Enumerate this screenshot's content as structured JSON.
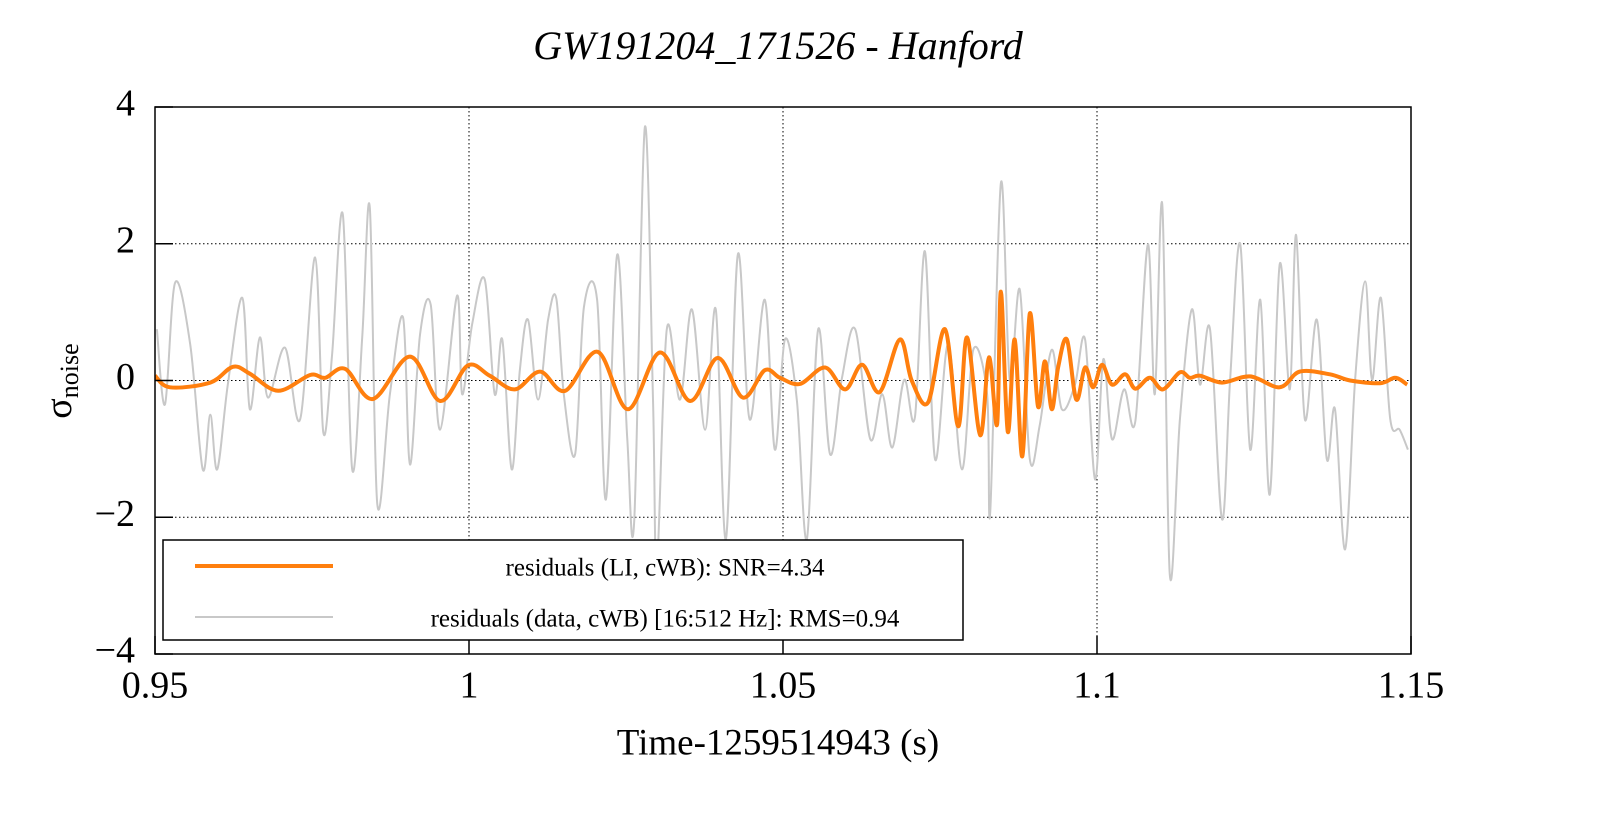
{
  "chart_data": {
    "type": "line",
    "title": "GW191204_171526 - Hanford",
    "xlabel": "Time-1259514943 (s)",
    "ylabel": {
      "symbol": "σ",
      "subscript": "noise"
    },
    "xlim": [
      0.95,
      1.15
    ],
    "xticks": [
      0.95,
      1,
      1.05,
      1.1,
      1.15
    ],
    "ylim": [
      -4,
      4
    ],
    "yticks": [
      {
        "value": -4,
        "label": "−4"
      },
      {
        "value": -2,
        "label": "−2"
      },
      0,
      2,
      4
    ],
    "grid": true,
    "legend": "lower left",
    "series": [
      {
        "name": "residuals (data, cWB) [16:512 Hz]: RMS=0.94",
        "color": "#c8c8c8",
        "x": [
          0.9503,
          0.9516,
          0.9532,
          0.9556,
          0.9576,
          0.9588,
          0.9599,
          0.9616,
          0.9639,
          0.9651,
          0.9667,
          0.968,
          0.9707,
          0.9731,
          0.9755,
          0.9768,
          0.9782,
          0.9799,
          0.9814,
          0.983,
          0.9842,
          0.9854,
          0.9874,
          0.9895,
          0.9906,
          0.9922,
          0.9939,
          0.9954,
          0.9981,
          0.9989,
          1.0005,
          1.0025,
          1.0041,
          1.0053,
          1.0068,
          1.0081,
          1.0094,
          1.011,
          1.0126,
          1.0139,
          1.0151,
          1.0169,
          1.0183,
          1.0204,
          1.0218,
          1.0236,
          1.0252,
          1.0263,
          1.028,
          1.0293,
          1.0299,
          1.0315,
          1.0336,
          1.0355,
          1.0376,
          1.0393,
          1.0409,
          1.0428,
          1.0447,
          1.0471,
          1.0487,
          1.0503,
          1.0522,
          1.0538,
          1.0556,
          1.0575,
          1.0594,
          1.0615,
          1.0639,
          1.0658,
          1.0674,
          1.0693,
          1.071,
          1.0726,
          1.0742,
          1.0763,
          1.0785,
          1.0803,
          1.0825,
          1.083,
          1.0847,
          1.0861,
          1.0877,
          1.0893,
          1.0909,
          1.0928,
          1.0944,
          1.0965,
          1.0981,
          1.0997,
          1.101,
          1.1024,
          1.1043,
          1.1061,
          1.1081,
          1.1092,
          1.1104,
          1.1116,
          1.1132,
          1.1151,
          1.1164,
          1.118,
          1.1199,
          1.1212,
          1.1228,
          1.1244,
          1.126,
          1.1275,
          1.1291,
          1.1307,
          1.1317,
          1.1331,
          1.135,
          1.1366,
          1.1379,
          1.1395,
          1.1411,
          1.1427,
          1.1438,
          1.1452,
          1.1467,
          1.1482,
          1.1495
        ],
        "values": [
          0.75,
          -0.35,
          1.43,
          0.53,
          -1.3,
          -0.5,
          -1.3,
          -0.06,
          1.21,
          -0.42,
          0.63,
          -0.25,
          0.48,
          -0.57,
          1.8,
          -0.76,
          0.38,
          2.43,
          -1.3,
          0.63,
          2.53,
          -1.81,
          -0.2,
          0.92,
          -1.23,
          0.67,
          1.11,
          -0.72,
          1.24,
          -0.2,
          0.82,
          1.48,
          -0.2,
          0.6,
          -1.3,
          0.16,
          0.89,
          -0.28,
          0.89,
          1.2,
          -0.2,
          -1.08,
          1.07,
          1.18,
          -1.74,
          1.84,
          -0.86,
          -2.06,
          3.7,
          -0.28,
          -2.76,
          0.75,
          -0.28,
          1.04,
          -0.72,
          1.04,
          -2.32,
          1.84,
          -0.57,
          1.18,
          -1.01,
          0.6,
          -0.28,
          -2.32,
          0.75,
          -1.08,
          0.04,
          0.75,
          -0.86,
          -0.2,
          -0.98,
          0.01,
          -0.54,
          1.89,
          -1.15,
          0.53,
          -1.3,
          0.45,
          -0.2,
          -1.93,
          2.89,
          0.01,
          1.33,
          -1.15,
          -0.64,
          0.45,
          -0.42,
          -0.06,
          0.6,
          -1.45,
          0.31,
          -0.86,
          -0.13,
          -0.6,
          1.99,
          -0.2,
          2.57,
          -2.84,
          -0.57,
          1.04,
          -0.06,
          0.75,
          -2.03,
          0.01,
          2.0,
          -1.01,
          1.18,
          -1.67,
          1.7,
          -0.13,
          2.13,
          -0.57,
          0.89,
          -1.15,
          -0.42,
          -2.47,
          0.01,
          1.45,
          0.01,
          1.21,
          -0.57,
          -0.72,
          -1.01
        ]
      },
      {
        "name": "residuals (LI, cWB): SNR=4.34",
        "color": "#ff7f0e",
        "x": [
          0.95,
          0.9524,
          0.9588,
          0.9624,
          0.9651,
          0.9696,
          0.9747,
          0.9771,
          0.9803,
          0.9847,
          0.9906,
          0.9954,
          0.9998,
          1.0033,
          1.0073,
          1.0113,
          1.0153,
          1.0205,
          1.0253,
          1.0304,
          1.0352,
          1.0396,
          1.0436,
          1.0471,
          1.0495,
          1.0527,
          1.0567,
          1.0599,
          1.0626,
          1.0654,
          1.0686,
          1.0705,
          1.0731,
          1.0758,
          1.0779,
          1.0793,
          1.0814,
          1.0828,
          1.0841,
          1.0847,
          1.0858,
          1.0869,
          1.0881,
          1.0893,
          1.0906,
          1.0917,
          1.0928,
          1.0938,
          1.0952,
          1.0967,
          1.0981,
          1.0994,
          1.1008,
          1.1024,
          1.1045,
          1.1061,
          1.1084,
          1.1105,
          1.1132,
          1.1148,
          1.1164,
          1.1199,
          1.1244,
          1.1291,
          1.1323,
          1.1371,
          1.1403,
          1.1451,
          1.1475,
          1.1494
        ],
        "values": [
          0.07,
          -0.1,
          -0.03,
          0.2,
          0.1,
          -0.15,
          0.08,
          0.04,
          0.17,
          -0.27,
          0.35,
          -0.3,
          0.22,
          0.07,
          -0.13,
          0.13,
          -0.15,
          0.42,
          -0.42,
          0.41,
          -0.3,
          0.33,
          -0.25,
          0.15,
          0.04,
          -0.05,
          0.19,
          -0.13,
          0.23,
          -0.17,
          0.6,
          0,
          -0.32,
          0.75,
          -0.67,
          0.63,
          -0.8,
          0.34,
          -0.64,
          1.3,
          -0.75,
          0.6,
          -1.11,
          0.98,
          -0.38,
          0.28,
          -0.42,
          0.19,
          0.6,
          -0.28,
          0.19,
          -0.1,
          0.23,
          -0.06,
          0.09,
          -0.12,
          0.04,
          -0.13,
          0.12,
          0.04,
          0.07,
          -0.03,
          0.06,
          -0.1,
          0.13,
          0.09,
          0,
          -0.04,
          0.04,
          -0.06
        ]
      }
    ]
  }
}
